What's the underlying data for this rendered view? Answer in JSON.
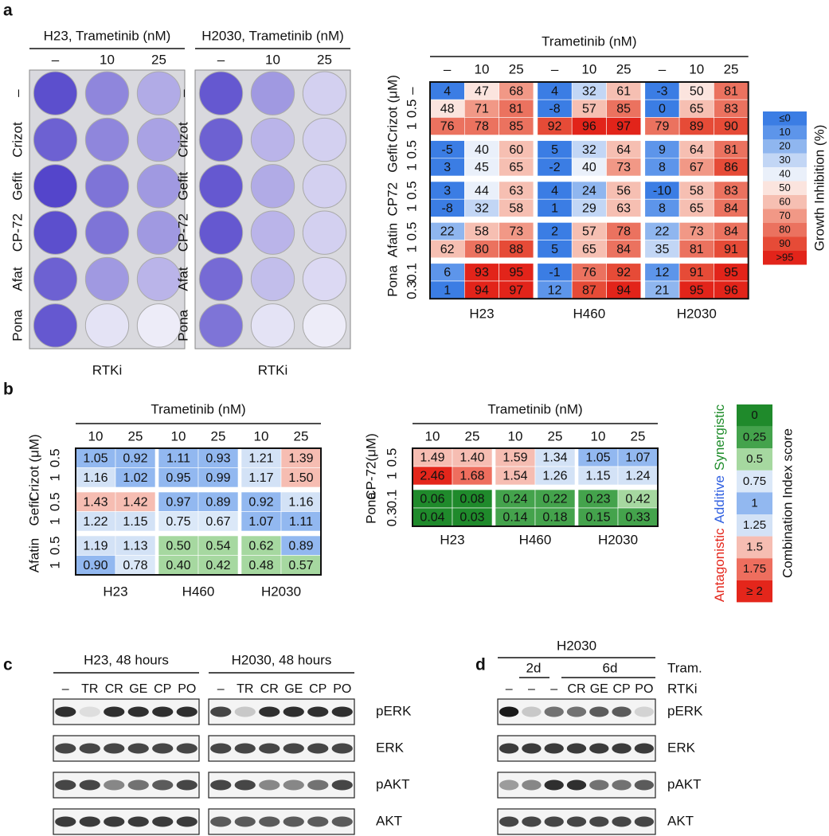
{
  "panel_labels": [
    "a",
    "b",
    "c",
    "d"
  ],
  "plates": [
    {
      "title": "H23, Trametinib (nM)",
      "columns": [
        "–",
        "10",
        "25"
      ],
      "rows": [
        "–",
        "Crizot",
        "Gefit",
        "CP-72",
        "Afat",
        "Pona"
      ],
      "xlabel": "RTKi"
    },
    {
      "title": "H2030, Trametinib (nM)",
      "columns": [
        "–",
        "10",
        "25"
      ],
      "rows": [
        "–",
        "Crizot",
        "Gefit",
        "CP-72",
        "Afat",
        "Pona"
      ],
      "xlabel": "RTKi"
    }
  ],
  "growth": {
    "title": "Trametinib (nM)",
    "columns": [
      "–",
      "10",
      "25"
    ],
    "cell_lines": [
      "H23",
      "H460",
      "H2030"
    ],
    "groups": [
      {
        "label": "Crizot (μM)",
        "doses": [
          "–",
          "0.5",
          "1"
        ],
        "rows": [
          [
            4,
            47,
            68,
            4,
            32,
            61,
            -3,
            50,
            81
          ],
          [
            48,
            71,
            81,
            -8,
            57,
            85,
            0,
            65,
            83
          ],
          [
            76,
            78,
            85,
            92,
            96,
            97,
            79,
            89,
            90
          ]
        ]
      },
      {
        "label": "Gefit",
        "doses": [
          "0.5",
          "1"
        ],
        "rows": [
          [
            -5,
            40,
            60,
            5,
            32,
            64,
            9,
            64,
            81
          ],
          [
            3,
            45,
            65,
            -2,
            40,
            73,
            8,
            67,
            86
          ]
        ]
      },
      {
        "label": "CP72",
        "doses": [
          "0.5",
          "1"
        ],
        "rows": [
          [
            3,
            44,
            63,
            4,
            24,
            56,
            -10,
            58,
            83
          ],
          [
            -8,
            32,
            58,
            1,
            29,
            63,
            8,
            65,
            84
          ]
        ]
      },
      {
        "label": "Afatin",
        "doses": [
          "0.5",
          "1"
        ],
        "rows": [
          [
            22,
            58,
            73,
            2,
            57,
            78,
            22,
            73,
            84
          ],
          [
            62,
            80,
            88,
            5,
            65,
            84,
            35,
            81,
            91
          ]
        ]
      },
      {
        "label": "Pona",
        "doses": [
          "0.1",
          "0.3"
        ],
        "rows": [
          [
            6,
            93,
            95,
            -1,
            76,
            92,
            12,
            91,
            95
          ],
          [
            1,
            94,
            97,
            12,
            87,
            94,
            21,
            95,
            96
          ]
        ]
      }
    ],
    "legend": {
      "title": "Growth Inhibition (%)",
      "items": [
        {
          "label": "≤0",
          "color": "#3b7de4"
        },
        {
          "label": "10",
          "color": "#5d95ea"
        },
        {
          "label": "20",
          "color": "#8fb6ef"
        },
        {
          "label": "30",
          "color": "#c2d6f5"
        },
        {
          "label": "40",
          "color": "#eaf0fa"
        },
        {
          "label": "50",
          "color": "#fbe4de"
        },
        {
          "label": "60",
          "color": "#f6bfb2"
        },
        {
          "label": "70",
          "color": "#f19886"
        },
        {
          "label": "80",
          "color": "#eb725f"
        },
        {
          "label": "90",
          "color": "#e64b37"
        },
        {
          "label": ">95",
          "color": "#e2241a"
        }
      ]
    }
  },
  "ci": {
    "tables": [
      {
        "title": "Trametinib (nM)",
        "columns": [
          "10",
          "25"
        ],
        "cell_lines": [
          "H23",
          "H460",
          "H2030"
        ],
        "groups": [
          {
            "label": "Crizot (μM)",
            "doses": [
              "0.5",
              "1"
            ],
            "rows": [
              [
                "1.05",
                "0.92",
                "1.11",
                "0.93",
                "1.21",
                "1.39"
              ],
              [
                "1.16",
                "1.02",
                "0.95",
                "0.99",
                "1.17",
                "1.50"
              ]
            ]
          },
          {
            "label": "Gefit",
            "doses": [
              "0.5",
              "1"
            ],
            "rows": [
              [
                "1.43",
                "1.42",
                "0.97",
                "0.89",
                "0.92",
                "1.16"
              ],
              [
                "1.22",
                "1.15",
                "0.75",
                "0.67",
                "1.07",
                "1.11"
              ]
            ]
          },
          {
            "label": "Afatin",
            "doses": [
              "0.5",
              "1"
            ],
            "rows": [
              [
                "1.19",
                "1.13",
                "0.50",
                "0.54",
                "0.62",
                "0.89"
              ],
              [
                "0.90",
                "0.78",
                "0.40",
                "0.42",
                "0.48",
                "0.57"
              ]
            ]
          }
        ]
      },
      {
        "title": "Trametinib (nM)",
        "columns": [
          "10",
          "25"
        ],
        "cell_lines": [
          "H23",
          "H460",
          "H2030"
        ],
        "groups": [
          {
            "label": "CP-72(μM)",
            "doses": [
              "0.5",
              "1"
            ],
            "rows": [
              [
                "1.49",
                "1.40",
                "1.59",
                "1.34",
                "1.05",
                "1.07"
              ],
              [
                "2.46",
                "1.68",
                "1.54",
                "1.26",
                "1.15",
                "1.24"
              ]
            ]
          },
          {
            "label": "Pona",
            "doses": [
              "0.1",
              "0.3"
            ],
            "rows": [
              [
                "0.06",
                "0.08",
                "0.24",
                "0.22",
                "0.23",
                "0.42"
              ],
              [
                "0.04",
                "0.03",
                "0.14",
                "0.18",
                "0.15",
                "0.33"
              ]
            ]
          }
        ]
      }
    ],
    "legend": {
      "title": "Combination Index score",
      "classes": [
        {
          "label": "Antagonistic",
          "color": "#e4261b"
        },
        {
          "label": "Additive",
          "color": "#2f5fe0"
        },
        {
          "label": "Synergistic",
          "color": "#1e8c2a"
        }
      ],
      "items": [
        {
          "label": "0",
          "color": "#1f8a2b"
        },
        {
          "label": "0.25",
          "color": "#44a34c"
        },
        {
          "label": "0.5",
          "color": "#a6d8a0"
        },
        {
          "label": "0.75",
          "color": "#dbe8f8"
        },
        {
          "label": "1",
          "color": "#92b8f0"
        },
        {
          "label": "1.25",
          "color": "#d3e2f6"
        },
        {
          "label": "1.5",
          "color": "#f6bdb2"
        },
        {
          "label": "1.75",
          "color": "#ee6e5e"
        },
        {
          "label": "≥ 2",
          "color": "#e4261b"
        }
      ]
    }
  },
  "blots_c": {
    "panels": [
      {
        "title": "H23, 48 hours",
        "lanes": [
          "–",
          "TR",
          "CR",
          "GE",
          "CP",
          "PO"
        ]
      },
      {
        "title": "H2030, 48 hours",
        "lanes": [
          "–",
          "TR",
          "CR",
          "GE",
          "CP",
          "PO"
        ]
      }
    ],
    "proteins": [
      "pERK",
      "ERK",
      "pAKT",
      "AKT"
    ]
  },
  "blots_d": {
    "title": "H2030",
    "timepoints": [
      "2d",
      "6d"
    ],
    "treatments": [
      "Tram.",
      "RTKi"
    ],
    "lanes": [
      "–",
      "–",
      "–",
      "CR",
      "GE",
      "CP",
      "PO"
    ],
    "proteins": [
      "pERK",
      "ERK",
      "pAKT",
      "AKT"
    ]
  }
}
